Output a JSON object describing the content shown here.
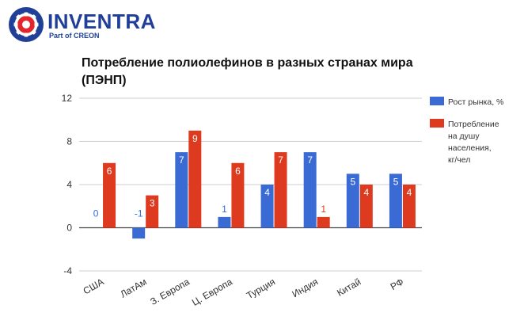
{
  "brand": {
    "name": "INVENTRA",
    "tagline": "Part of CREON",
    "colors": {
      "navy": "#1f3f98",
      "red": "#e3262b"
    }
  },
  "chart_data": {
    "type": "bar",
    "title": "Потребление полиолефинов в разных странах мира (ПЭНП)",
    "xlabel": "",
    "ylabel": "",
    "ylim": [
      -4,
      12
    ],
    "yticks": [
      -4,
      0,
      4,
      8,
      12
    ],
    "grid": true,
    "legend": "right",
    "categories": [
      "США",
      "ЛатАм",
      "З. Европа",
      "Ц. Европа",
      "Турция",
      "Индия",
      "Китай",
      "РФ"
    ],
    "series": [
      {
        "name": "Рост рынка, %",
        "color": "#3a6bd4",
        "values": [
          0,
          -1,
          7,
          1,
          4,
          7,
          5,
          5
        ]
      },
      {
        "name": "Потребление на душу населения, кг/чел",
        "color": "#dd3a1f",
        "values": [
          6,
          3,
          9,
          6,
          7,
          1,
          4,
          4
        ]
      }
    ],
    "legend_lines": [
      [
        "Рост рынка, %"
      ],
      [
        "Потребление",
        "на душу",
        "населения,",
        "кг/чел"
      ]
    ]
  }
}
